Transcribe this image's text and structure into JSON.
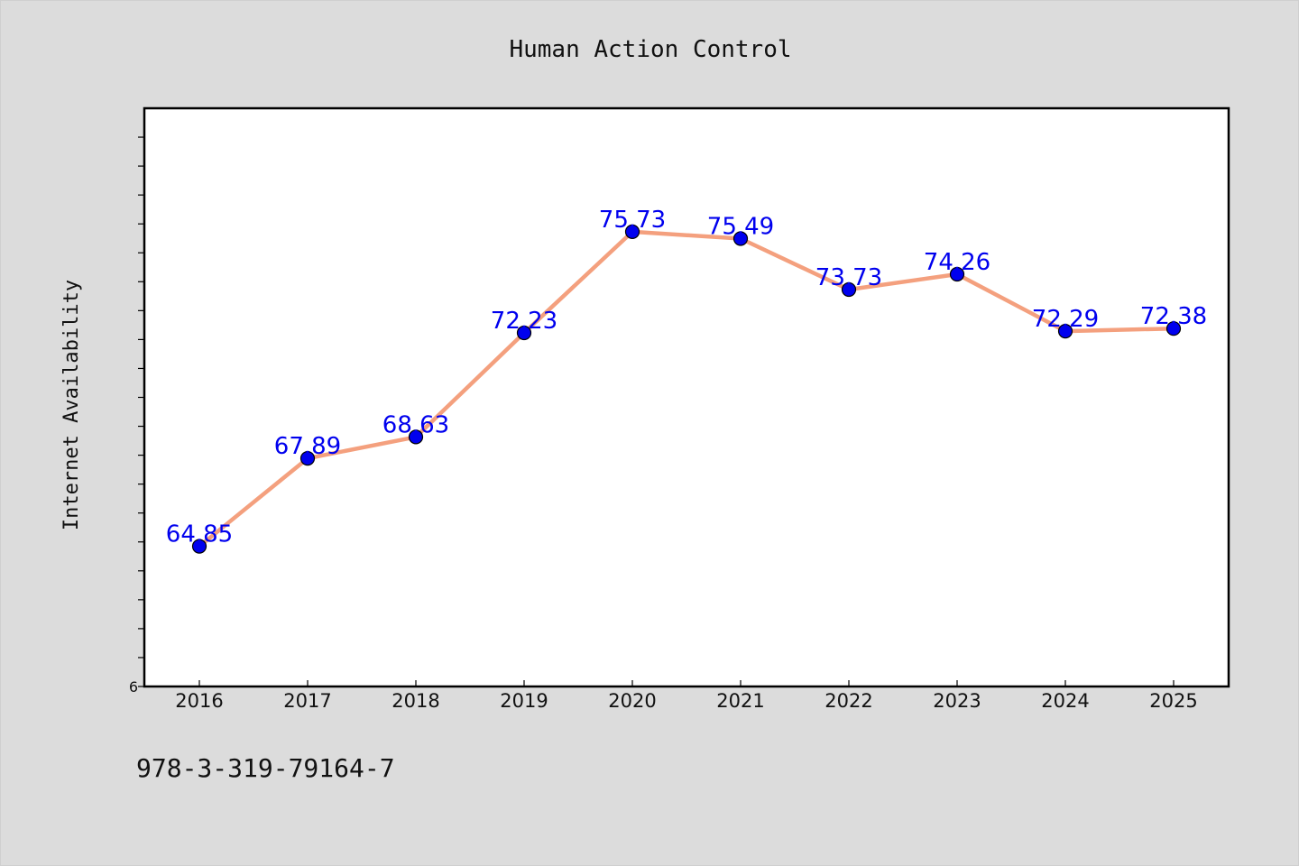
{
  "chart_data": {
    "type": "line",
    "title": "Human Action Control",
    "xlabel": "",
    "ylabel": "Internet Availability",
    "categories": [
      "2016",
      "2017",
      "2018",
      "2019",
      "2020",
      "2021",
      "2022",
      "2023",
      "2024",
      "2025"
    ],
    "series": [
      {
        "values": [
          64.85,
          67.89,
          68.63,
          72.23,
          75.73,
          75.49,
          73.73,
          74.26,
          72.29,
          72.38
        ],
        "data_labels": [
          "64.85",
          "67.89",
          "68.63",
          "72.23",
          "75.73",
          "75.49",
          "73.73",
          "74.26",
          "72.29",
          "72.38"
        ]
      }
    ],
    "ylim": [
      60,
      80
    ],
    "y_tick_labels": [
      "6"
    ],
    "grid": false,
    "legend": "none",
    "colors": {
      "line": "#f4a07e",
      "marker": "#0000ee",
      "data_label": "#0000ee",
      "plot_background": "#ffffff",
      "page_background": "#dcdcdc"
    }
  },
  "footer": {
    "code": "978-3-319-79164-7"
  }
}
